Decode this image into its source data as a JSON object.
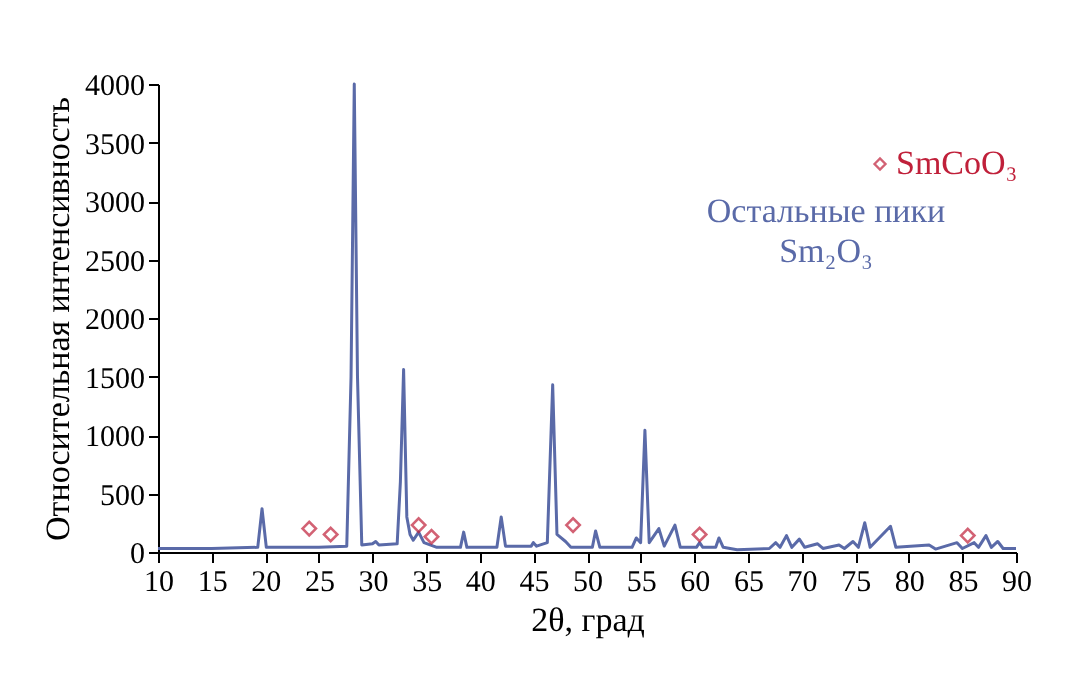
{
  "chart_data": {
    "type": "line",
    "xlabel": "2θ, град",
    "ylabel": "Относительная интенсивность",
    "xlim": [
      10,
      90
    ],
    "xticks": [
      10,
      15,
      20,
      25,
      30,
      35,
      40,
      45,
      50,
      55,
      60,
      65,
      70,
      75,
      80,
      85,
      90
    ],
    "ylim": [
      0,
      4000
    ],
    "yticks": [
      0,
      500,
      1000,
      1500,
      2000,
      2500,
      3000,
      3500,
      4000
    ],
    "grid": false,
    "legend": "top right",
    "series": [
      {
        "name": "Остальные пики Sm₂O₃",
        "color": "#5a6aa8",
        "marker": "none",
        "line_style": "solid",
        "x": [
          10,
          15,
          19.3,
          19.7,
          20.1,
          23,
          25,
          27.6,
          28.0,
          28.3,
          28.6,
          29.0,
          30.0,
          30.3,
          30.6,
          32.3,
          32.6,
          32.9,
          33.2,
          33.5,
          33.8,
          34.3,
          34.8,
          36,
          38.2,
          38.5,
          38.8,
          41.6,
          42.0,
          42.4,
          44.8,
          45.0,
          45.3,
          46.3,
          46.8,
          47.2,
          48.0,
          48.5,
          50.5,
          50.8,
          51.2,
          54.2,
          54.6,
          55.0,
          55.4,
          55.8,
          56.7,
          57.2,
          58.2,
          58.7,
          60.2,
          60.5,
          60.8,
          62.0,
          62.3,
          62.7,
          64,
          67,
          67.6,
          68,
          68.6,
          69.1,
          69.8,
          70.3,
          71.5,
          72,
          73.5,
          74,
          74.8,
          75.3,
          75.9,
          76.4,
          78.3,
          78.8,
          81.9,
          82.5,
          84.5,
          85,
          86.1,
          86.5,
          87.2,
          87.7,
          88.3,
          88.8,
          90
        ],
        "values": [
          30,
          30,
          40,
          370,
          40,
          40,
          40,
          50,
          1500,
          4000,
          1500,
          60,
          70,
          90,
          60,
          70,
          600,
          1560,
          300,
          150,
          100,
          170,
          80,
          40,
          40,
          170,
          40,
          40,
          300,
          50,
          50,
          80,
          50,
          80,
          1430,
          150,
          90,
          40,
          40,
          180,
          40,
          40,
          120,
          80,
          1040,
          80,
          200,
          50,
          230,
          40,
          40,
          80,
          40,
          40,
          120,
          40,
          20,
          30,
          80,
          40,
          140,
          40,
          110,
          40,
          70,
          30,
          60,
          30,
          90,
          40,
          250,
          40,
          220,
          40,
          60,
          25,
          80,
          30,
          80,
          40,
          140,
          40,
          90,
          30,
          30
        ]
      },
      {
        "name": "SmCoO₃",
        "type": "scatter",
        "color": "#c0203a",
        "marker": "diamond",
        "x": [
          24.1,
          26.1,
          34.3,
          35.5,
          48.7,
          60.5,
          85.5
        ],
        "values": [
          200,
          150,
          230,
          130,
          230,
          150,
          140
        ]
      }
    ]
  }
}
